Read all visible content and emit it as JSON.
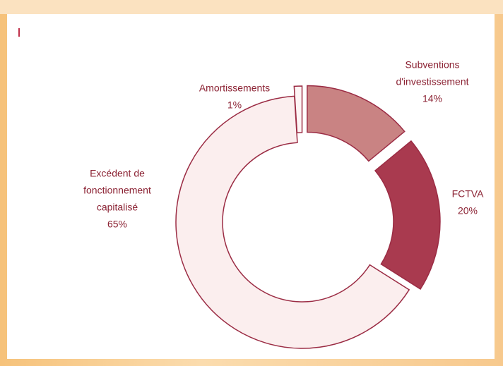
{
  "chart_data": {
    "type": "donut",
    "labels": [
      [
        "Subventions",
        "d'investissement"
      ],
      [
        "FCTVA"
      ],
      [
        "Excédent de",
        "fonctionnement",
        "capitalisé"
      ],
      [
        "Amortissements"
      ]
    ],
    "values": [
      14,
      20,
      65,
      1
    ],
    "value_labels": [
      "14%",
      "20%",
      "65%",
      "1%"
    ],
    "colors": [
      "#c98383",
      "#a93a4f",
      "#fbeeee",
      "#fdf5f5"
    ],
    "stroke": "#9b2c44"
  }
}
